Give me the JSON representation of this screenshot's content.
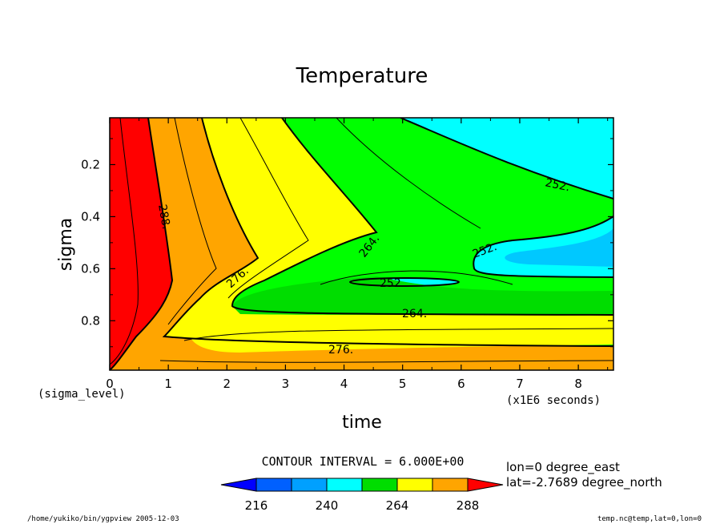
{
  "chart_data": {
    "type": "contour",
    "title": "Temperature",
    "xlabel": "time",
    "ylabel": "sigma",
    "x_unit_note": "(x1E6 seconds)",
    "y_corner_note": "(sigma_level)",
    "x_ticks": [
      "0",
      "1",
      "2",
      "3",
      "4",
      "5",
      "6",
      "7",
      "8"
    ],
    "y_ticks": [
      "0.2",
      "0.4",
      "0.6",
      "0.8"
    ],
    "xlim": [
      0,
      8.6
    ],
    "ylim_inverted": [
      0.02,
      0.99
    ],
    "contour_labels": [
      "288.",
      "276.",
      "264.",
      "252.",
      "252.",
      "264.",
      "252.",
      "276."
    ],
    "contour_interval_text": "CONTOUR INTERVAL = 6.000E+00",
    "colorbar": {
      "ticks": [
        "216",
        "240",
        "264",
        "288"
      ],
      "colors": [
        "#0000ff",
        "#0060ff",
        "#00a0ff",
        "#00ffff",
        "#00dd00",
        "#ffff00",
        "#ffa500",
        "#ff0000"
      ]
    },
    "location_lines": [
      "lon=0 degree_east",
      "lat=-2.7689 degree_north"
    ],
    "footer_left": "/home/yukiko/bin/ygpview  2005-12-03",
    "footer_right": "temp.nc@temp,lat=0,lon=0"
  }
}
